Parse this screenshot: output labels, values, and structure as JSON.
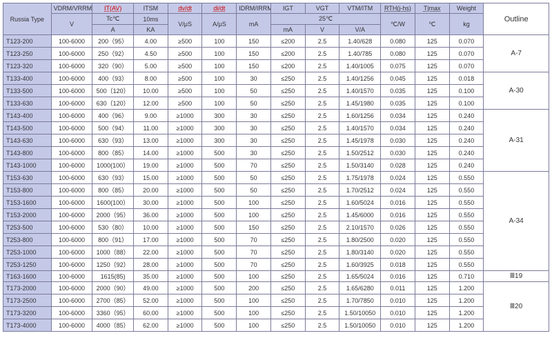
{
  "headers": {
    "russia_type": "Russia Type",
    "outline": "Outline",
    "vdrm": "V",
    "vdrm_top": "VDRM/VRRM",
    "it_top": "IT(AV)",
    "it_tc": "Tc℃",
    "it_unit": "A",
    "itsm_top": "ITSM",
    "itsm_10ms": "10ms",
    "itsm_unit": "KA",
    "dvdt_top": "dv/dt",
    "dvdt_unit": "V/μS",
    "didt_top": "di/dt",
    "didt_unit": "A/μS",
    "idrm_top": "IDRM/IRRM",
    "idrm_unit": "mA",
    "c25": "25℃",
    "igt_top": "IGT",
    "igt_unit": "mA",
    "vgt_top": "VGT",
    "vgt_unit": "V",
    "vtm_top": "VTM/ITM",
    "vtm_unit": "V/A",
    "rth_top": "RTH(j-hs)",
    "rth_unit": "℃/W",
    "tjmax_top": "Tjmax",
    "tjmax_unit": "℃",
    "wt_top": "Weight",
    "wt_unit": "kg"
  },
  "rows": [
    {
      "type": "T123-200",
      "v": "100-6000",
      "it": "200（95）",
      "itsm": "4.00",
      "dv": "≥500",
      "di": "100",
      "idrm": "150",
      "igt": "≤200",
      "vgt": "2.5",
      "vtm": "1.40/628",
      "rth": "0.080",
      "tj": "125",
      "wt": "0.070"
    },
    {
      "type": "T123-250",
      "v": "100-6000",
      "it": "250（92）",
      "itsm": "4.50",
      "dv": "≥500",
      "di": "100",
      "idrm": "150",
      "igt": "≤200",
      "vgt": "2.5",
      "vtm": "1.40/785",
      "rth": "0.080",
      "tj": "125",
      "wt": "0.070"
    },
    {
      "type": "T123-320",
      "v": "100-6000",
      "it": "320（90）",
      "itsm": "5.00",
      "dv": "≥500",
      "di": "100",
      "idrm": "150",
      "igt": "≤200",
      "vgt": "2.5",
      "vtm": "1.40/1005",
      "rth": "0.075",
      "tj": "125",
      "wt": "0.070"
    },
    {
      "type": "T133-400",
      "v": "100-6000",
      "it": "400（93）",
      "itsm": "8.00",
      "dv": "≥500",
      "di": "100",
      "idrm": "30",
      "igt": "≤250",
      "vgt": "2.5",
      "vtm": "1.40/1256",
      "rth": "0.045",
      "tj": "125",
      "wt": "0.018"
    },
    {
      "type": "T133-500",
      "v": "100-6000",
      "it": "500（120）",
      "itsm": "10.00",
      "dv": "≥500",
      "di": "100",
      "idrm": "50",
      "igt": "≤250",
      "vgt": "2.5",
      "vtm": "1.40/1570",
      "rth": "0.035",
      "tj": "125",
      "wt": "0.100"
    },
    {
      "type": "T133-630",
      "v": "100-6000",
      "it": "630（120）",
      "itsm": "12.00",
      "dv": "≥500",
      "di": "100",
      "idrm": "50",
      "igt": "≤250",
      "vgt": "2.5",
      "vtm": "1.45/1980",
      "rth": "0.035",
      "tj": "125",
      "wt": "0.100"
    },
    {
      "type": "T143-400",
      "v": "100-6000",
      "it": "400（96）",
      "itsm": "9.00",
      "dv": "≥1000",
      "di": "300",
      "idrm": "30",
      "igt": "≤250",
      "vgt": "2.5",
      "vtm": "1.60/1256",
      "rth": "0.034",
      "tj": "125",
      "wt": "0.240"
    },
    {
      "type": "T143-500",
      "v": "100-6000",
      "it": "500（94）",
      "itsm": "11.00",
      "dv": "≥1000",
      "di": "300",
      "idrm": "30",
      "igt": "≤250",
      "vgt": "2.5",
      "vtm": "1.40/1570",
      "rth": "0.034",
      "tj": "125",
      "wt": "0.240"
    },
    {
      "type": "T143-630",
      "v": "100-6000",
      "it": "630（93）",
      "itsm": "13.00",
      "dv": "≥1000",
      "di": "300",
      "idrm": "30",
      "igt": "≤250",
      "vgt": "2.5",
      "vtm": "1.45/1978",
      "rth": "0.030",
      "tj": "125",
      "wt": "0.240"
    },
    {
      "type": "T143-800",
      "v": "100-6000",
      "it": "800（85）",
      "itsm": "14.00",
      "dv": "≥1000",
      "di": "500",
      "idrm": "30",
      "igt": "≤250",
      "vgt": "2.5",
      "vtm": "1.50/2512",
      "rth": "0.030",
      "tj": "125",
      "wt": "0.240"
    },
    {
      "type": "T143-1000",
      "v": "100-6000",
      "it": "1000(100）",
      "itsm": "19.00",
      "dv": "≥1000",
      "di": "500",
      "idrm": "70",
      "igt": "≤250",
      "vgt": "2.5",
      "vtm": "1.50/3140",
      "rth": "0.028",
      "tj": "125",
      "wt": "0.240"
    },
    {
      "type": "T153-630",
      "v": "100-6000",
      "it": "630（93）",
      "itsm": "15.00",
      "dv": "≥1000",
      "di": "500",
      "idrm": "50",
      "igt": "≤250",
      "vgt": "2.5",
      "vtm": "1.75/1978",
      "rth": "0.024",
      "tj": "125",
      "wt": "0.550"
    },
    {
      "type": "T153-800",
      "v": "100-6000",
      "it": "800（85）",
      "itsm": "20.00",
      "dv": "≥1000",
      "di": "500",
      "idrm": "50",
      "igt": "≤250",
      "vgt": "2.5",
      "vtm": "1.70/2512",
      "rth": "0.024",
      "tj": "125",
      "wt": "0.550"
    },
    {
      "type": "T153-1600",
      "v": "100-6000",
      "it": "1600(100）",
      "itsm": "30.00",
      "dv": "≥1000",
      "di": "500",
      "idrm": "100",
      "igt": "≤250",
      "vgt": "2.5",
      "vtm": "1.60/5024",
      "rth": "0.016",
      "tj": "125",
      "wt": "0.550"
    },
    {
      "type": "T153-2000",
      "v": "100-6000",
      "it": "2000（95）",
      "itsm": "36.00",
      "dv": "≥1000",
      "di": "500",
      "idrm": "100",
      "igt": "≤250",
      "vgt": "2.5",
      "vtm": "1.45/6000",
      "rth": "0.016",
      "tj": "125",
      "wt": "0.550"
    },
    {
      "type": "T253-500",
      "v": "100-6000",
      "it": "530（80）",
      "itsm": "10.00",
      "dv": "≥1000",
      "di": "500",
      "idrm": "150",
      "igt": "≤250",
      "vgt": "2.5",
      "vtm": "2.10/1570",
      "rth": "0.026",
      "tj": "125",
      "wt": "0.550"
    },
    {
      "type": "T253-800",
      "v": "100-6000",
      "it": "800（91）",
      "itsm": "17.00",
      "dv": "≥1000",
      "di": "500",
      "idrm": "70",
      "igt": "≤250",
      "vgt": "2.5",
      "vtm": "1.80/2500",
      "rth": "0.020",
      "tj": "125",
      "wt": "0.550"
    },
    {
      "type": "T253-1000",
      "v": "100-6000",
      "it": "1000（88）",
      "itsm": "22.00",
      "dv": "≥1000",
      "di": "500",
      "idrm": "70",
      "igt": "≤250",
      "vgt": "2.5",
      "vtm": "1.80/3140",
      "rth": "0.020",
      "tj": "125",
      "wt": "0.550"
    },
    {
      "type": "T253-1250",
      "v": "100-6000",
      "it": "1250（92）",
      "itsm": "28.00",
      "dv": "≥1000",
      "di": "500",
      "idrm": "70",
      "igt": "≤250",
      "vgt": "2.5",
      "vtm": "1.60/3925",
      "rth": "0.018",
      "tj": "125",
      "wt": "0.550"
    },
    {
      "type": "T163-1600",
      "v": "100-6000",
      "it": "1615(85)",
      "itsm": "35.00",
      "dv": "≥1000",
      "di": "500",
      "idrm": "100",
      "igt": "≤250",
      "vgt": "2.5",
      "vtm": "1.65/5024",
      "rth": "0.016",
      "tj": "125",
      "wt": "0.710"
    },
    {
      "type": "T173-2000",
      "v": "100-6000",
      "it": "2000（90）",
      "itsm": "49.00",
      "dv": "≥1000",
      "di": "500",
      "idrm": "200",
      "igt": "≤250",
      "vgt": "2.5",
      "vtm": "1.65/6280",
      "rth": "0.011",
      "tj": "125",
      "wt": "1.200"
    },
    {
      "type": "T173-2500",
      "v": "100-6000",
      "it": "2700（85）",
      "itsm": "52.00",
      "dv": "≥1000",
      "di": "500",
      "idrm": "100",
      "igt": "≤250",
      "vgt": "2.5",
      "vtm": "1.70/7850",
      "rth": "0.010",
      "tj": "125",
      "wt": "1.200"
    },
    {
      "type": "T173-3200",
      "v": "100-6000",
      "it": "3360（95）",
      "itsm": "60.00",
      "dv": "≥1000",
      "di": "500",
      "idrm": "100",
      "igt": "≤250",
      "vgt": "2.5",
      "vtm": "1.50/10050",
      "rth": "0.010",
      "tj": "125",
      "wt": "1.200"
    },
    {
      "type": "T173-4000",
      "v": "100-6000",
      "it": "4000（85）",
      "itsm": "62.00",
      "dv": "≥1000",
      "di": "500",
      "idrm": "100",
      "igt": "≤250",
      "vgt": "2.5",
      "vtm": "1.50/10050",
      "rth": "0.010",
      "tj": "125",
      "wt": "1.200"
    }
  ],
  "outlines": [
    {
      "label": "A-7",
      "span": 3
    },
    {
      "label": "A-30",
      "span": 3
    },
    {
      "label": "A-31",
      "span": 5
    },
    {
      "label": "A-34",
      "span": 8
    },
    {
      "label": "Ⅲ19",
      "span": 1
    },
    {
      "label": "Ⅲ20",
      "span": 4
    }
  ]
}
